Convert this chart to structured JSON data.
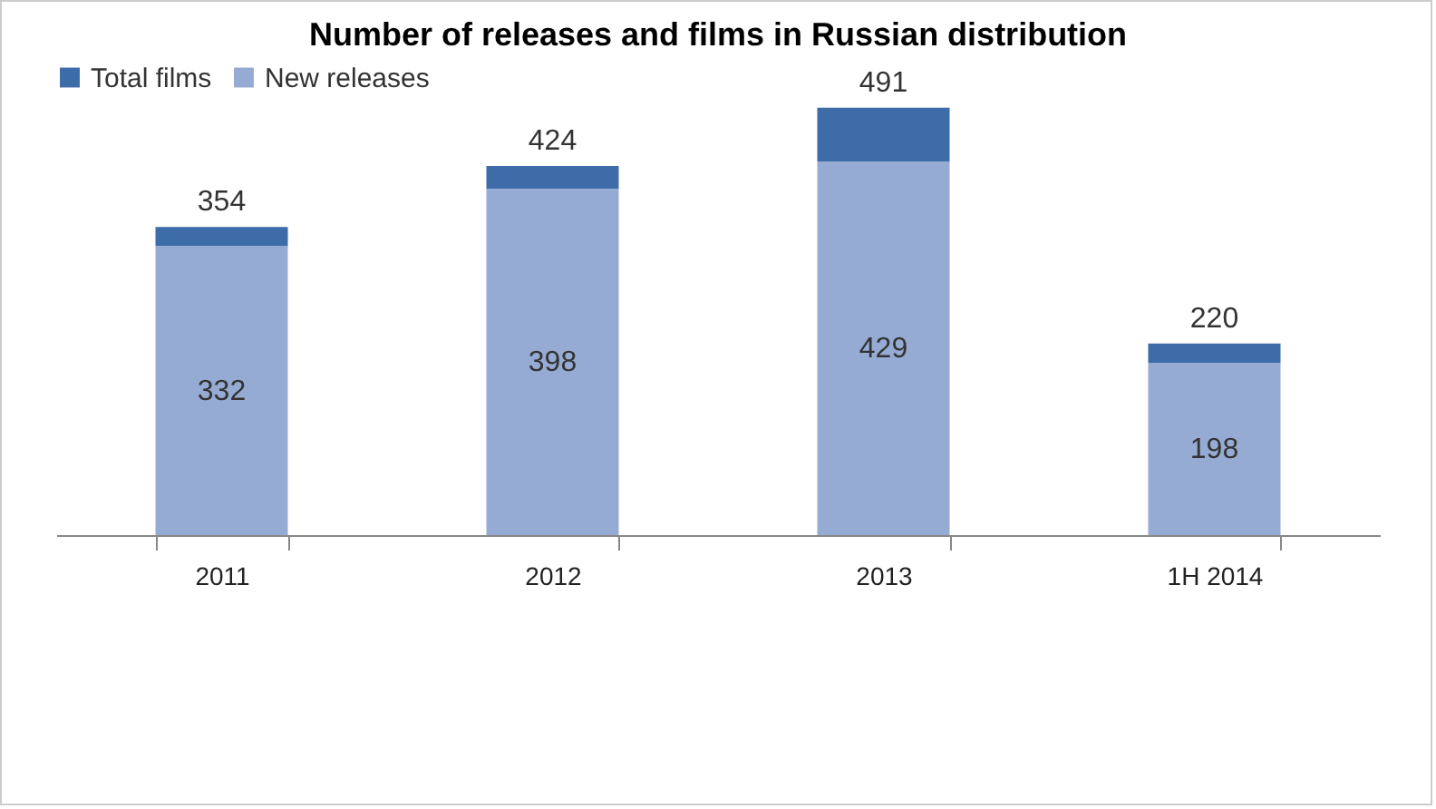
{
  "chart_data": {
    "type": "bar",
    "title": "Number of releases and films in Russian distribution",
    "categories": [
      "2011",
      "2012",
      "2013",
      "1H 2014"
    ],
    "stacked": true,
    "legend": "top",
    "grid": false,
    "series": [
      {
        "name": "New releases",
        "color": "#95abd3",
        "values": [
          332,
          398,
          429,
          198
        ],
        "value_labels": [
          "332",
          "398",
          "429",
          "198"
        ]
      },
      {
        "name": "Total films",
        "color": "#3e6ca8",
        "values": [
          22,
          26,
          62,
          22
        ]
      }
    ],
    "totals": [
      "354",
      "424",
      "491",
      "220"
    ]
  }
}
